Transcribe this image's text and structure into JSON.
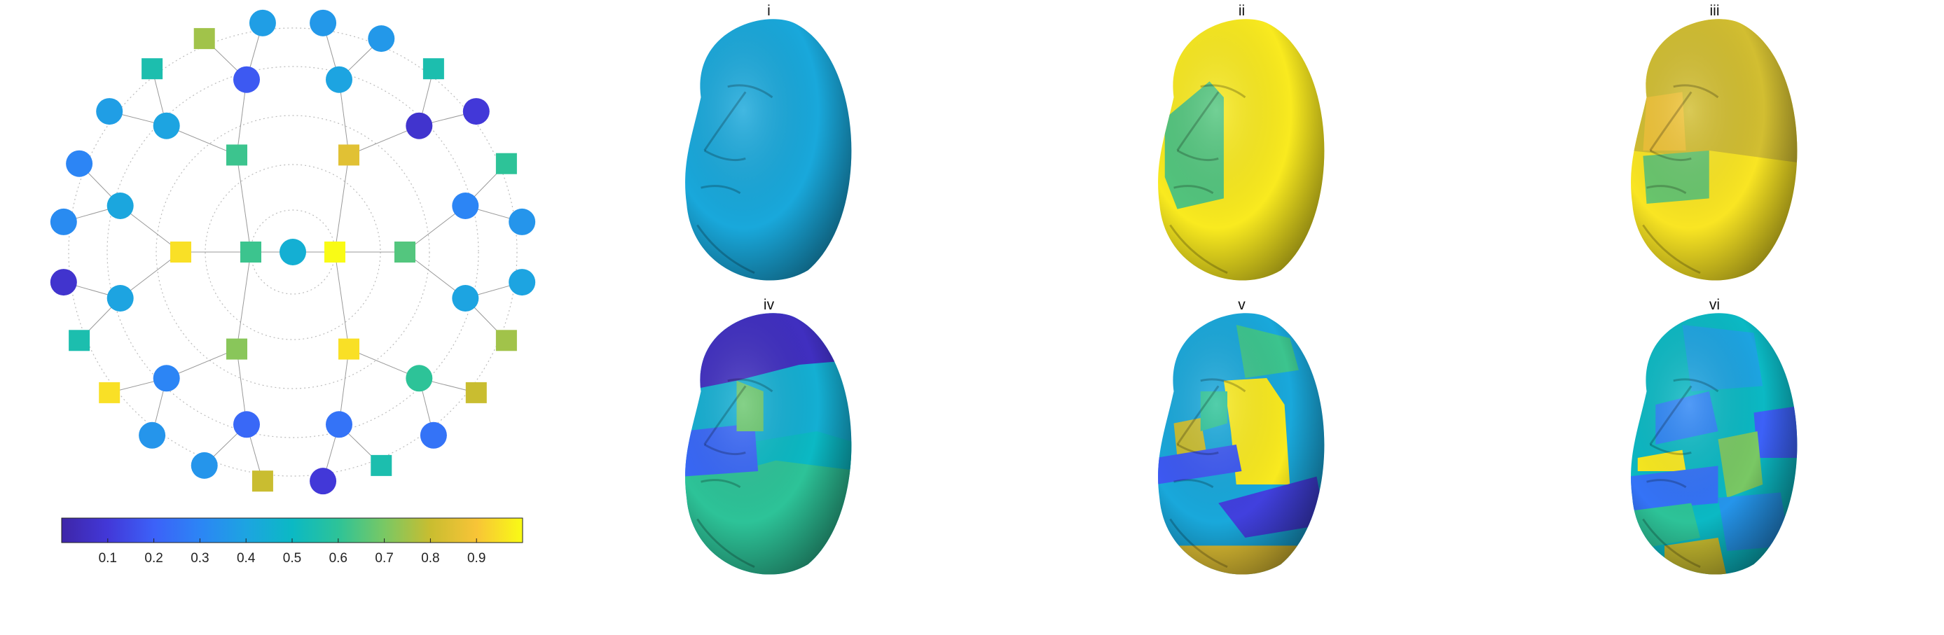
{
  "colormap": [
    "#3e26a8",
    "#4238d8",
    "#3c61f8",
    "#2c85f5",
    "#1da4e1",
    "#0bb9c4",
    "#2dc398",
    "#79c864",
    "#c9bd30",
    "#f8c437",
    "#f9fb15"
  ],
  "colorbar": {
    "ticks": [
      "0.1",
      "0.2",
      "0.3",
      "0.4",
      "0.5",
      "0.6",
      "0.7",
      "0.8",
      "0.9"
    ],
    "tick_values": [
      0.1,
      0.2,
      0.3,
      0.4,
      0.5,
      0.6,
      0.7,
      0.8,
      0.9
    ],
    "range": [
      0,
      1
    ]
  },
  "network": {
    "center": {
      "shape": "circle",
      "value": 0.45
    },
    "layer1": [
      {
        "shape": "square",
        "value": 1.0
      },
      {
        "shape": "square",
        "value": 0.62
      }
    ],
    "layer2": [
      {
        "shape": "square",
        "value": 0.85
      },
      {
        "shape": "square",
        "value": 0.65
      },
      {
        "shape": "square",
        "value": 0.95
      },
      {
        "shape": "square",
        "value": 0.72
      },
      {
        "shape": "square",
        "value": 0.95
      },
      {
        "shape": "square",
        "value": 0.62
      }
    ],
    "layer3": [
      {
        "shape": "circle",
        "value": 0.4
      },
      {
        "shape": "circle",
        "value": 0.08
      },
      {
        "shape": "circle",
        "value": 0.3
      },
      {
        "shape": "circle",
        "value": 0.4
      },
      {
        "shape": "circle",
        "value": 0.6
      },
      {
        "shape": "circle",
        "value": 0.25
      },
      {
        "shape": "circle",
        "value": 0.22
      },
      {
        "shape": "circle",
        "value": 0.3
      },
      {
        "shape": "circle",
        "value": 0.4
      },
      {
        "shape": "circle",
        "value": 0.41
      },
      {
        "shape": "circle",
        "value": 0.4
      },
      {
        "shape": "circle",
        "value": 0.18
      }
    ],
    "layer4": [
      {
        "shape": "circle",
        "value": 0.36
      },
      {
        "shape": "circle",
        "value": 0.36
      },
      {
        "shape": "square",
        "value": 0.55
      },
      {
        "shape": "circle",
        "value": 0.1
      },
      {
        "shape": "square",
        "value": 0.6
      },
      {
        "shape": "circle",
        "value": 0.35
      },
      {
        "shape": "circle",
        "value": 0.4
      },
      {
        "shape": "square",
        "value": 0.75
      },
      {
        "shape": "square",
        "value": 0.8
      },
      {
        "shape": "circle",
        "value": 0.25
      },
      {
        "shape": "square",
        "value": 0.55
      },
      {
        "shape": "circle",
        "value": 0.1
      },
      {
        "shape": "square",
        "value": 0.8
      },
      {
        "shape": "circle",
        "value": 0.35
      },
      {
        "shape": "circle",
        "value": 0.35
      },
      {
        "shape": "square",
        "value": 0.95
      },
      {
        "shape": "square",
        "value": 0.55
      },
      {
        "shape": "circle",
        "value": 0.08
      },
      {
        "shape": "circle",
        "value": 0.32
      },
      {
        "shape": "circle",
        "value": 0.3
      },
      {
        "shape": "circle",
        "value": 0.38
      },
      {
        "shape": "square",
        "value": 0.55
      },
      {
        "shape": "square",
        "value": 0.75
      },
      {
        "shape": "circle",
        "value": 0.38
      }
    ]
  },
  "faces": [
    {
      "label": "i",
      "regions": [
        {
          "value": 0.42,
          "poly": [
            [
              0,
              0
            ],
            [
              1,
              0
            ],
            [
              1,
              1
            ],
            [
              0,
              1
            ]
          ]
        }
      ]
    },
    {
      "label": "ii",
      "regions": [
        {
          "value": 0.97,
          "poly": [
            [
              0,
              0
            ],
            [
              1,
              0
            ],
            [
              1,
              1
            ],
            [
              0,
              1
            ]
          ]
        },
        {
          "value": 0.65,
          "poly": [
            [
              0.05,
              0.38
            ],
            [
              0.3,
              0.24
            ],
            [
              0.38,
              0.3
            ],
            [
              0.38,
              0.68
            ],
            [
              0.12,
              0.72
            ],
            [
              0.05,
              0.6
            ]
          ]
        }
      ]
    },
    {
      "label": "iii",
      "regions": [
        {
          "value": 0.96,
          "poly": [
            [
              0,
              0
            ],
            [
              1,
              0
            ],
            [
              1,
              1
            ],
            [
              0,
              1
            ]
          ]
        },
        {
          "value": 0.82,
          "poly": [
            [
              0,
              0
            ],
            [
              1,
              0
            ],
            [
              1,
              0.55
            ],
            [
              0.45,
              0.5
            ],
            [
              0.3,
              0.52
            ],
            [
              0,
              0.5
            ]
          ]
        },
        {
          "value": 0.68,
          "poly": [
            [
              0.08,
              0.52
            ],
            [
              0.45,
              0.5
            ],
            [
              0.45,
              0.68
            ],
            [
              0.1,
              0.7
            ]
          ]
        },
        {
          "value": 0.88,
          "poly": [
            [
              0.1,
              0.3
            ],
            [
              0.3,
              0.28
            ],
            [
              0.32,
              0.5
            ],
            [
              0.08,
              0.5
            ]
          ]
        }
      ]
    },
    {
      "label": "iv",
      "regions": [
        {
          "value": 0.45,
          "poly": [
            [
              0,
              0
            ],
            [
              1,
              0
            ],
            [
              1,
              1
            ],
            [
              0,
              1
            ]
          ]
        },
        {
          "value": 0.05,
          "poly": [
            [
              0,
              0
            ],
            [
              1,
              0
            ],
            [
              1,
              0.18
            ],
            [
              0.65,
              0.2
            ],
            [
              0.3,
              0.26
            ],
            [
              0,
              0.3
            ]
          ]
        },
        {
          "value": 0.6,
          "poly": [
            [
              0,
              0.62
            ],
            [
              0.52,
              0.5
            ],
            [
              1,
              0.55
            ],
            [
              1,
              1
            ],
            [
              0,
              1
            ]
          ]
        },
        {
          "value": 0.5,
          "poly": [
            [
              0.3,
              0.5
            ],
            [
              0.75,
              0.45
            ],
            [
              1,
              0.5
            ],
            [
              1,
              0.6
            ],
            [
              0.52,
              0.56
            ],
            [
              0.3,
              0.6
            ]
          ]
        },
        {
          "value": 0.22,
          "poly": [
            [
              0,
              0.45
            ],
            [
              0.4,
              0.42
            ],
            [
              0.42,
              0.6
            ],
            [
              0,
              0.62
            ]
          ]
        },
        {
          "value": 0.68,
          "poly": [
            [
              0.3,
              0.26
            ],
            [
              0.45,
              0.3
            ],
            [
              0.45,
              0.45
            ],
            [
              0.3,
              0.45
            ]
          ]
        }
      ]
    },
    {
      "label": "v",
      "regions": [
        {
          "value": 0.42,
          "poly": [
            [
              0,
              0
            ],
            [
              1,
              0
            ],
            [
              1,
              1
            ],
            [
              0,
              1
            ]
          ]
        },
        {
          "value": 0.62,
          "poly": [
            [
              0.45,
              0.05
            ],
            [
              0.75,
              0.1
            ],
            [
              0.8,
              0.22
            ],
            [
              0.5,
              0.25
            ]
          ]
        },
        {
          "value": 0.97,
          "poly": [
            [
              0.38,
              0.26
            ],
            [
              0.62,
              0.25
            ],
            [
              0.72,
              0.35
            ],
            [
              0.75,
              0.65
            ],
            [
              0.45,
              0.65
            ],
            [
              0.42,
              0.45
            ]
          ]
        },
        {
          "value": 0.8,
          "poly": [
            [
              0.1,
              0.42
            ],
            [
              0.25,
              0.4
            ],
            [
              0.28,
              0.52
            ],
            [
              0.12,
              0.55
            ]
          ]
        },
        {
          "value": 0.18,
          "poly": [
            [
              0,
              0.55
            ],
            [
              0.45,
              0.5
            ],
            [
              0.48,
              0.6
            ],
            [
              0,
              0.65
            ]
          ]
        },
        {
          "value": 0.12,
          "poly": [
            [
              0.35,
              0.72
            ],
            [
              0.9,
              0.62
            ],
            [
              0.95,
              0.8
            ],
            [
              0.5,
              0.85
            ]
          ]
        },
        {
          "value": 0.85,
          "poly": [
            [
              0,
              0.88
            ],
            [
              1,
              0.88
            ],
            [
              1,
              1
            ],
            [
              0,
              1
            ]
          ]
        },
        {
          "value": 0.6,
          "poly": [
            [
              0.25,
              0.3
            ],
            [
              0.4,
              0.3
            ],
            [
              0.4,
              0.42
            ],
            [
              0.25,
              0.45
            ]
          ]
        }
      ]
    },
    {
      "label": "vi",
      "regions": [
        {
          "value": 0.5,
          "poly": [
            [
              0,
              0
            ],
            [
              1,
              0
            ],
            [
              1,
              1
            ],
            [
              0,
              1
            ]
          ]
        },
        {
          "value": 0.4,
          "poly": [
            [
              0.3,
              0.05
            ],
            [
              0.7,
              0.08
            ],
            [
              0.75,
              0.28
            ],
            [
              0.35,
              0.3
            ]
          ]
        },
        {
          "value": 0.2,
          "poly": [
            [
              0.7,
              0.38
            ],
            [
              1,
              0.35
            ],
            [
              1,
              0.55
            ],
            [
              0.72,
              0.55
            ]
          ]
        },
        {
          "value": 0.7,
          "poly": [
            [
              0.5,
              0.48
            ],
            [
              0.72,
              0.45
            ],
            [
              0.75,
              0.65
            ],
            [
              0.55,
              0.7
            ]
          ]
        },
        {
          "value": 0.3,
          "poly": [
            [
              0.15,
              0.35
            ],
            [
              0.45,
              0.3
            ],
            [
              0.5,
              0.45
            ],
            [
              0.15,
              0.5
            ]
          ]
        },
        {
          "value": 0.97,
          "poly": [
            [
              0.05,
              0.55
            ],
            [
              0.3,
              0.52
            ],
            [
              0.32,
              0.6
            ],
            [
              0.05,
              0.6
            ]
          ]
        },
        {
          "value": 0.25,
          "poly": [
            [
              0,
              0.62
            ],
            [
              0.5,
              0.58
            ],
            [
              0.5,
              0.72
            ],
            [
              0,
              0.75
            ]
          ]
        },
        {
          "value": 0.6,
          "poly": [
            [
              0,
              0.75
            ],
            [
              0.35,
              0.72
            ],
            [
              0.4,
              0.85
            ],
            [
              0,
              0.9
            ]
          ]
        },
        {
          "value": 0.8,
          "poly": [
            [
              0.2,
              0.88
            ],
            [
              0.5,
              0.85
            ],
            [
              0.55,
              1
            ],
            [
              0.2,
              1
            ]
          ]
        },
        {
          "value": 0.35,
          "poly": [
            [
              0.5,
              0.7
            ],
            [
              0.85,
              0.68
            ],
            [
              0.9,
              0.88
            ],
            [
              0.55,
              0.9
            ]
          ]
        }
      ]
    }
  ]
}
